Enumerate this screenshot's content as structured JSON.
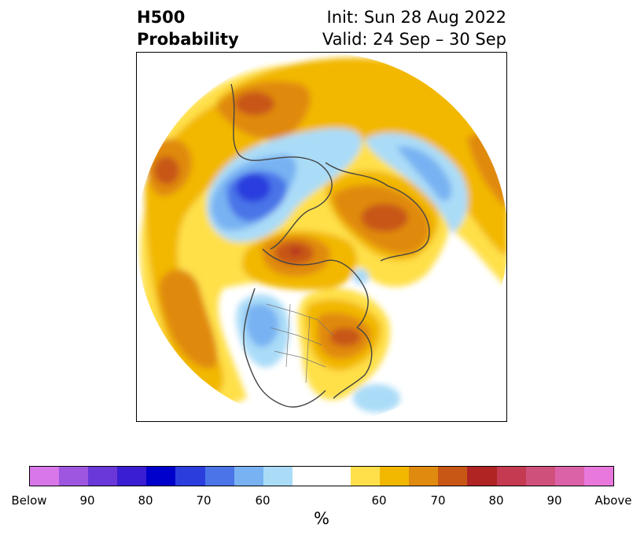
{
  "title": {
    "left_line1": "H500",
    "left_line2": "Probability",
    "right_line1": "Init: Sun 28 Aug 2022",
    "right_line2": "Valid: 24 Sep – 30 Sep"
  },
  "colorbar": {
    "colors": [
      "#d878e8",
      "#9e56e0",
      "#6a38d8",
      "#3a1ed2",
      "#0000cc",
      "#2a3ede",
      "#4a74e8",
      "#78b2f2",
      "#aadcf8",
      "#ffffff",
      "#ffffff",
      "#ffe04a",
      "#f2b800",
      "#e08a10",
      "#c85614",
      "#b02424",
      "#c43a50",
      "#d0507c",
      "#dc62a8",
      "#e878dc"
    ],
    "labels": [
      "Below",
      "90",
      "80",
      "70",
      "60",
      "60",
      "70",
      "80",
      "90",
      "Above"
    ],
    "unit": "%"
  },
  "map": {
    "projection": "north-polar-stereographic",
    "features": [
      "Above-normal probability centers over Scandinavia, western Russia, central Canada and the North Pacific",
      "Below-normal probability centers over eastern Siberia and the western United States"
    ]
  }
}
